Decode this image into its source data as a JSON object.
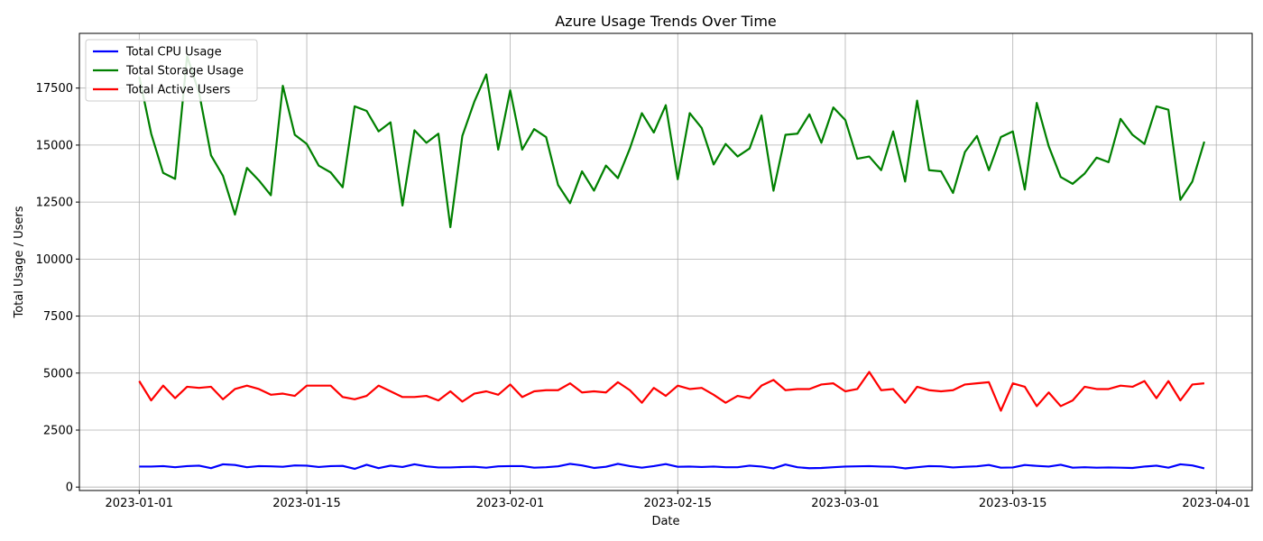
{
  "chart_data": {
    "type": "line",
    "title": "Azure Usage Trends Over Time",
    "xlabel": "Date",
    "ylabel": "Total Usage / Users",
    "x_start": "2023-01-01",
    "x_end": "2023-03-31",
    "xlim": [
      "2022-12-27",
      "2023-04-04"
    ],
    "ylim": [
      -150,
      19900
    ],
    "grid": true,
    "legend_position": "top-left",
    "x_ticks": [
      {
        "date": "2023-01-01",
        "label": "2023-01-01"
      },
      {
        "date": "2023-01-15",
        "label": "2023-01-15"
      },
      {
        "date": "2023-02-01",
        "label": "2023-02-01"
      },
      {
        "date": "2023-02-15",
        "label": "2023-02-15"
      },
      {
        "date": "2023-03-01",
        "label": "2023-03-01"
      },
      {
        "date": "2023-03-15",
        "label": "2023-03-15"
      },
      {
        "date": "2023-04-01",
        "label": "2023-04-01"
      }
    ],
    "y_ticks": [
      {
        "value": 0,
        "label": "0"
      },
      {
        "value": 2500,
        "label": "2500"
      },
      {
        "value": 5000,
        "label": "5000"
      },
      {
        "value": 7500,
        "label": "7500"
      },
      {
        "value": 10000,
        "label": "10000"
      },
      {
        "value": 12500,
        "label": "12500"
      },
      {
        "value": 15000,
        "label": "15000"
      },
      {
        "value": 17500,
        "label": "17500"
      }
    ],
    "series": [
      {
        "name": "Total CPU Usage",
        "color": "#0000ff",
        "values": [
          900,
          900,
          920,
          870,
          920,
          940,
          830,
          1000,
          970,
          870,
          920,
          910,
          890,
          950,
          940,
          880,
          920,
          930,
          800,
          980,
          830,
          940,
          880,
          1000,
          910,
          860,
          860,
          880,
          890,
          850,
          910,
          920,
          920,
          850,
          870,
          910,
          1020,
          950,
          840,
          890,
          1020,
          920,
          850,
          920,
          1010,
          890,
          900,
          880,
          900,
          870,
          870,
          940,
          900,
          820,
          990,
          870,
          830,
          840,
          870,
          900,
          910,
          920,
          900,
          890,
          820,
          870,
          920,
          910,
          860,
          890,
          910,
          970,
          850,
          860,
          970,
          930,
          900,
          980,
          850,
          870,
          850,
          860,
          850,
          840,
          900,
          940,
          850,
          1000,
          950,
          820
        ]
      },
      {
        "name": "Total Storage Usage",
        "color": "#008000",
        "values": [
          18000,
          15500,
          13780,
          13520,
          18900,
          17300,
          14550,
          13650,
          11950,
          14000,
          13450,
          12800,
          17600,
          15450,
          15050,
          14100,
          13800,
          13150,
          16700,
          16500,
          15600,
          16000,
          12350,
          15650,
          15100,
          15500,
          11400,
          15400,
          16900,
          18100,
          14800,
          17400,
          14800,
          15700,
          15350,
          13250,
          12450,
          13850,
          13000,
          14100,
          13550,
          14850,
          16400,
          15550,
          16750,
          13500,
          16400,
          15750,
          14150,
          15050,
          14500,
          14850,
          16300,
          13000,
          15450,
          15500,
          16350,
          15100,
          16650,
          16100,
          14400,
          14500,
          13900,
          15600,
          13400,
          16950,
          13900,
          13850,
          12900,
          14700,
          15400,
          13900,
          15350,
          15600,
          13050,
          16850,
          14950,
          13600,
          13300,
          13750,
          14450,
          14250,
          16150,
          15450,
          15050,
          16700,
          16550,
          12600,
          13400,
          15150
        ]
      },
      {
        "name": "Total Active Users",
        "color": "#ff0000",
        "values": [
          4650,
          3800,
          4450,
          3900,
          4400,
          4350,
          4400,
          3850,
          4300,
          4450,
          4300,
          4050,
          4100,
          4000,
          4450,
          4450,
          4450,
          3950,
          3850,
          4000,
          4450,
          4200,
          3950,
          3950,
          4000,
          3800,
          4200,
          3750,
          4100,
          4200,
          4050,
          4500,
          3950,
          4200,
          4250,
          4250,
          4550,
          4150,
          4200,
          4150,
          4600,
          4250,
          3700,
          4350,
          4000,
          4450,
          4300,
          4350,
          4050,
          3700,
          4000,
          3900,
          4450,
          4700,
          4250,
          4300,
          4300,
          4500,
          4550,
          4200,
          4300,
          5050,
          4250,
          4300,
          3700,
          4400,
          4250,
          4200,
          4250,
          4500,
          4550,
          4600,
          3350,
          4550,
          4400,
          3550,
          4150,
          3550,
          3800,
          4400,
          4300,
          4300,
          4450,
          4400,
          4650,
          3900,
          4650,
          3800,
          4500,
          4550
        ]
      }
    ]
  }
}
